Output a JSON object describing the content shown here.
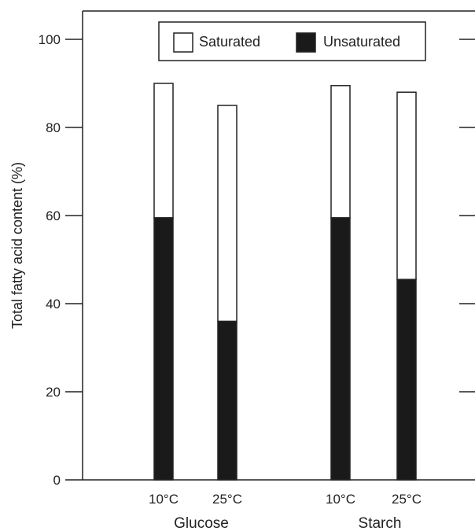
{
  "chart_data": {
    "type": "bar",
    "stacked": true,
    "groups": [
      "Glucose",
      "Starch"
    ],
    "categories": [
      "10°C",
      "25°C",
      "10°C",
      "25°C"
    ],
    "category_groups": [
      0,
      0,
      1,
      1
    ],
    "series": [
      {
        "name": "Unsaturated",
        "values": [
          59.5,
          36,
          59.5,
          45.5
        ],
        "color": "#1a1a1a"
      },
      {
        "name": "Saturated",
        "values": [
          30.5,
          49,
          30,
          42.5
        ],
        "color": "#ffffff"
      }
    ],
    "ylabel": "Total fatty acid content (%)",
    "xlabel": "",
    "ylim": [
      0,
      100
    ],
    "yticks": [
      0,
      20,
      40,
      60,
      80,
      100
    ],
    "legend": {
      "position": "top-center",
      "entries": [
        "Saturated",
        "Unsaturated"
      ]
    },
    "grid": false
  }
}
